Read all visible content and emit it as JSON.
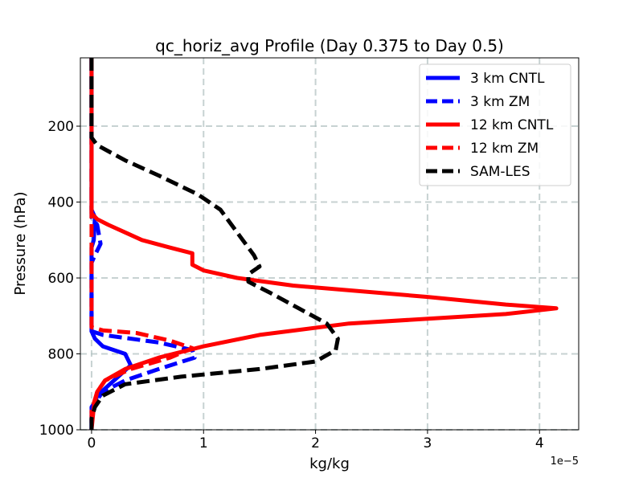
{
  "chart_data": {
    "type": "line",
    "title": "qc_horiz_avg Profile (Day 0.375 to Day 0.5)",
    "xlabel": "kg/kg",
    "ylabel": "Pressure (hPa)",
    "x_offset_label": "1e−5",
    "xlim": [
      -0.1,
      4.35
    ],
    "ylim": [
      1000,
      20
    ],
    "y_inverted": true,
    "x_ticks": [
      0,
      1,
      2,
      3,
      4
    ],
    "x_tick_labels": [
      "0",
      "1",
      "2",
      "3",
      "4"
    ],
    "y_ticks": [
      200,
      400,
      600,
      800,
      1000
    ],
    "y_tick_labels": [
      "200",
      "400",
      "600",
      "800",
      "1000"
    ],
    "grid": true,
    "legend_position": "top-right",
    "series": [
      {
        "name": "3 km CNTL",
        "color": "#0000ff",
        "dashed": false,
        "points": [
          [
            0,
            20
          ],
          [
            0,
            420
          ],
          [
            0.03,
            440
          ],
          [
            0.02,
            500
          ],
          [
            0,
            520
          ],
          [
            0,
            740
          ],
          [
            0.03,
            760
          ],
          [
            0.1,
            780
          ],
          [
            0.3,
            800
          ],
          [
            0.35,
            830
          ],
          [
            0.2,
            870
          ],
          [
            0.05,
            910
          ],
          [
            0,
            960
          ],
          [
            0,
            1000
          ]
        ]
      },
      {
        "name": "3 km ZM",
        "color": "#0000ff",
        "dashed": true,
        "points": [
          [
            0,
            20
          ],
          [
            0,
            440
          ],
          [
            0.05,
            460
          ],
          [
            0.08,
            510
          ],
          [
            0.03,
            540
          ],
          [
            0,
            560
          ],
          [
            0,
            740
          ],
          [
            0.1,
            750
          ],
          [
            0.6,
            770
          ],
          [
            0.9,
            790
          ],
          [
            0.92,
            810
          ],
          [
            0.6,
            840
          ],
          [
            0.3,
            870
          ],
          [
            0.1,
            900
          ],
          [
            0,
            940
          ],
          [
            0,
            1000
          ]
        ]
      },
      {
        "name": "12 km CNTL",
        "color": "#ff0000",
        "dashed": false,
        "points": [
          [
            0,
            20
          ],
          [
            0,
            430
          ],
          [
            0.05,
            445
          ],
          [
            0.15,
            460
          ],
          [
            0.3,
            480
          ],
          [
            0.45,
            500
          ],
          [
            0.7,
            520
          ],
          [
            0.9,
            535
          ],
          [
            0.9,
            565
          ],
          [
            1.0,
            580
          ],
          [
            1.3,
            600
          ],
          [
            1.8,
            620
          ],
          [
            3.0,
            650
          ],
          [
            3.7,
            670
          ],
          [
            4.15,
            680
          ],
          [
            3.7,
            695
          ],
          [
            2.3,
            720
          ],
          [
            1.5,
            750
          ],
          [
            1.0,
            780
          ],
          [
            0.6,
            810
          ],
          [
            0.3,
            840
          ],
          [
            0.12,
            870
          ],
          [
            0.05,
            900
          ],
          [
            0.02,
            940
          ],
          [
            0,
            1000
          ]
        ]
      },
      {
        "name": "12 km ZM",
        "color": "#ff0000",
        "dashed": true,
        "points": [
          [
            0,
            20
          ],
          [
            0,
            730
          ],
          [
            0.1,
            738
          ],
          [
            0.4,
            745
          ],
          [
            0.7,
            765
          ],
          [
            0.9,
            785
          ],
          [
            0.7,
            810
          ],
          [
            0.35,
            840
          ],
          [
            0.12,
            870
          ],
          [
            0.05,
            900
          ],
          [
            0,
            950
          ],
          [
            0,
            1000
          ]
        ]
      },
      {
        "name": "SAM-LES",
        "color": "#000000",
        "dashed": true,
        "points": [
          [
            0,
            20
          ],
          [
            0,
            230
          ],
          [
            0.05,
            250
          ],
          [
            0.3,
            290
          ],
          [
            0.6,
            330
          ],
          [
            0.95,
            380
          ],
          [
            1.15,
            420
          ],
          [
            1.25,
            460
          ],
          [
            1.35,
            500
          ],
          [
            1.45,
            540
          ],
          [
            1.5,
            570
          ],
          [
            1.4,
            590
          ],
          [
            1.4,
            610
          ],
          [
            1.6,
            640
          ],
          [
            1.85,
            680
          ],
          [
            2.1,
            720
          ],
          [
            2.2,
            760
          ],
          [
            2.18,
            790
          ],
          [
            2.0,
            820
          ],
          [
            1.5,
            840
          ],
          [
            0.8,
            860
          ],
          [
            0.3,
            880
          ],
          [
            0.1,
            910
          ],
          [
            0.03,
            940
          ],
          [
            0,
            970
          ],
          [
            0,
            1000
          ]
        ]
      }
    ]
  }
}
